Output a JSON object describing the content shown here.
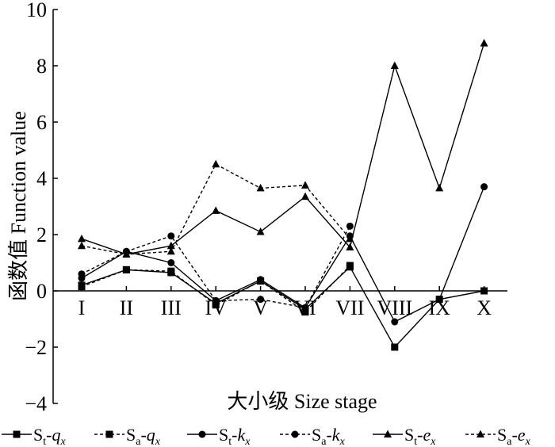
{
  "chart_data": {
    "type": "line",
    "title": "",
    "xlabel": "大小级 Size stage",
    "ylabel": "函数值 Function value",
    "ylim": [
      -4,
      10
    ],
    "yticks": [
      -4,
      -2,
      0,
      2,
      4,
      6,
      8,
      10
    ],
    "categories": [
      "I",
      "II",
      "III",
      "IV",
      "V",
      "VI",
      "VII",
      "VIII",
      "IX",
      "X"
    ],
    "grid": false,
    "legend_position": "bottom",
    "series": [
      {
        "name": "St-qx",
        "base": "S",
        "sub": "t",
        "var": "q",
        "var_sub": "x",
        "dashed": false,
        "marker": "square",
        "values": [
          0.2,
          0.75,
          0.65,
          -0.45,
          0.35,
          -0.65,
          0.85,
          -2.0,
          -0.3,
          0.0
        ]
      },
      {
        "name": "Sa-qx",
        "base": "S",
        "sub": "a",
        "var": "q",
        "var_sub": "x",
        "dashed": true,
        "marker": "square",
        "values": [
          0.15,
          0.75,
          0.7,
          -0.5,
          0.35,
          -0.75,
          0.9,
          null,
          null,
          null
        ]
      },
      {
        "name": "St-kx",
        "base": "S",
        "sub": "t",
        "var": "k",
        "var_sub": "x",
        "dashed": false,
        "marker": "circle",
        "values": [
          0.45,
          1.4,
          1.0,
          -0.35,
          0.4,
          -0.6,
          1.95,
          -1.1,
          -0.3,
          3.7
        ]
      },
      {
        "name": "Sa-kx",
        "base": "S",
        "sub": "a",
        "var": "k",
        "var_sub": "x",
        "dashed": true,
        "marker": "circle",
        "values": [
          0.6,
          1.4,
          1.95,
          -0.35,
          -0.3,
          -0.6,
          2.3,
          null,
          null,
          null
        ]
      },
      {
        "name": "St-ex",
        "base": "S",
        "sub": "t",
        "var": "e",
        "var_sub": "x",
        "dashed": false,
        "marker": "triangle",
        "values": [
          1.85,
          1.3,
          1.6,
          2.85,
          2.1,
          3.35,
          1.55,
          8.0,
          3.65,
          8.8
        ]
      },
      {
        "name": "Sa-ex",
        "base": "S",
        "sub": "a",
        "var": "e",
        "var_sub": "x",
        "dashed": true,
        "marker": "triangle",
        "values": [
          1.6,
          1.3,
          1.4,
          4.5,
          3.65,
          3.75,
          1.85,
          null,
          null,
          null
        ]
      }
    ]
  }
}
